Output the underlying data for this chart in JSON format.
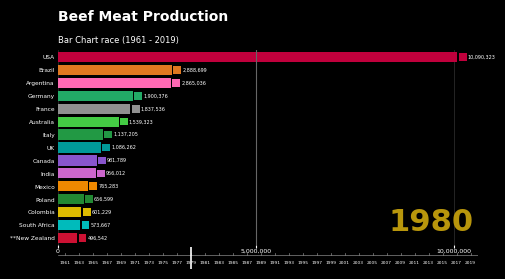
{
  "title": "Beef Meat Production",
  "subtitle": "Bar Chart race (1961 - 2019)",
  "year_label": "1980",
  "background_color": "#000000",
  "text_color": "#ffffff",
  "year_color": "#b8960c",
  "title_fontsize": 10,
  "subtitle_fontsize": 6,
  "countries": [
    "USA",
    "Brazil",
    "Argentina",
    "Germany",
    "France",
    "Australia",
    "Italy",
    "UK",
    "Canada",
    "India",
    "Mexico",
    "Poland",
    "Colombia",
    "South Africa",
    "**New Zealand"
  ],
  "values": [
    10090323,
    2888699,
    2865036,
    1900376,
    1837536,
    1539323,
    1137205,
    1086262,
    981789,
    956012,
    765283,
    656599,
    601229,
    573667,
    496542
  ],
  "bar_colors": [
    "#c0003c",
    "#e07820",
    "#ff69b4",
    "#22aa66",
    "#909090",
    "#44cc44",
    "#229944",
    "#009999",
    "#8855cc",
    "#cc66cc",
    "#ee8800",
    "#228833",
    "#ddbb00",
    "#00bbbb",
    "#cc1133"
  ],
  "xlim": [
    0,
    10600000
  ],
  "xticks": [
    0,
    5000000,
    10000000
  ],
  "xtick_labels": [
    "0",
    "5,000,000",
    "10,000,000"
  ],
  "timeline_years": [
    "1961",
    "1963",
    "1965",
    "1967",
    "1969",
    "1971",
    "1973",
    "1975",
    "1977",
    "1979",
    "1981",
    "1983",
    "1985",
    "1987",
    "1989",
    "1991",
    "1993",
    "1995",
    "1997",
    "1999",
    "2001",
    "2003",
    "2005",
    "2007",
    "2009",
    "2011",
    "2013",
    "2015",
    "2017",
    "2019"
  ],
  "current_year_index": 9,
  "vline_color": "#888888"
}
